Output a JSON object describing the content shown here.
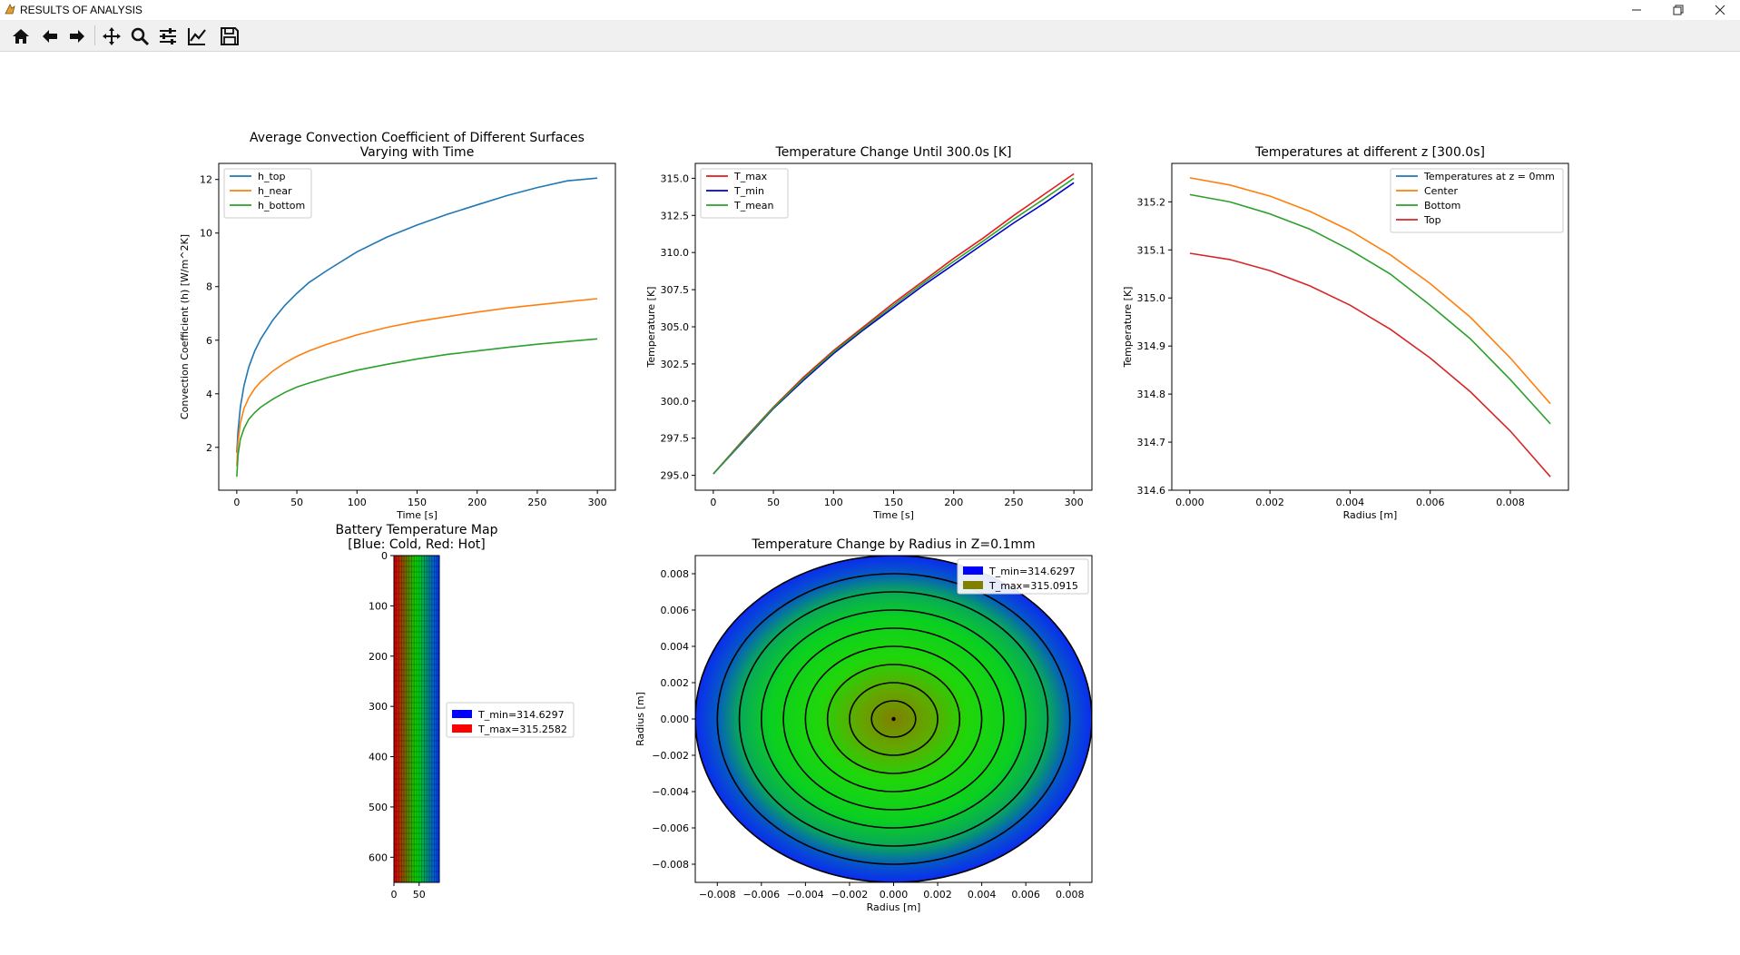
{
  "window": {
    "title": "RESULTS OF ANALYSIS",
    "controls": [
      "minimize",
      "restore",
      "close"
    ]
  },
  "toolbar": {
    "buttons": [
      {
        "icon": "home-icon",
        "name": "home"
      },
      {
        "icon": "back-arrow-icon",
        "name": "back"
      },
      {
        "icon": "forward-arrow-icon",
        "name": "forward"
      },
      {
        "icon": "pan-icon",
        "name": "pan"
      },
      {
        "icon": "zoom-icon",
        "name": "zoom"
      },
      {
        "icon": "configure-subplots-icon",
        "name": "subplots"
      },
      {
        "icon": "edit-axis-icon",
        "name": "customize"
      },
      {
        "icon": "save-icon",
        "name": "save"
      }
    ]
  },
  "chart_data": [
    {
      "type": "line",
      "title": "Average Convection Coefficient of Different Surfaces\nVarying with Time",
      "xlabel": "Time [s]",
      "ylabel": "Convection Coefficient (h) [W/m^2K]",
      "xlim": [
        -15,
        315
      ],
      "ylim": [
        0.4,
        12.6
      ],
      "xticks": [
        0,
        50,
        100,
        150,
        200,
        250,
        300
      ],
      "yticks": [
        2,
        4,
        6,
        8,
        10,
        12
      ],
      "legend": "top-left",
      "series": [
        {
          "name": "h_top",
          "color": "#1f77b4",
          "x": [
            0,
            1,
            3,
            6,
            10,
            15,
            20,
            30,
            40,
            50,
            60,
            75,
            100,
            125,
            150,
            175,
            200,
            225,
            250,
            275,
            300
          ],
          "y": [
            1.8,
            2.6,
            3.5,
            4.3,
            5.0,
            5.6,
            6.05,
            6.75,
            7.3,
            7.75,
            8.15,
            8.6,
            9.3,
            9.85,
            10.3,
            10.7,
            11.05,
            11.4,
            11.7,
            11.95,
            12.05
          ]
        },
        {
          "name": "h_near",
          "color": "#ff7f0e",
          "x": [
            0,
            1,
            3,
            6,
            10,
            15,
            20,
            30,
            40,
            50,
            60,
            75,
            100,
            125,
            150,
            175,
            200,
            225,
            250,
            275,
            300
          ],
          "y": [
            1.3,
            2.2,
            2.9,
            3.45,
            3.85,
            4.2,
            4.45,
            4.85,
            5.15,
            5.4,
            5.6,
            5.85,
            6.2,
            6.48,
            6.7,
            6.88,
            7.05,
            7.2,
            7.32,
            7.44,
            7.55
          ]
        },
        {
          "name": "h_bottom",
          "color": "#2ca02c",
          "x": [
            0,
            1,
            3,
            6,
            10,
            15,
            20,
            30,
            40,
            50,
            60,
            75,
            100,
            125,
            150,
            175,
            200,
            225,
            250,
            275,
            300
          ],
          "y": [
            0.9,
            1.7,
            2.3,
            2.7,
            3.05,
            3.3,
            3.5,
            3.8,
            4.05,
            4.25,
            4.4,
            4.6,
            4.88,
            5.1,
            5.3,
            5.47,
            5.6,
            5.73,
            5.85,
            5.95,
            6.05
          ]
        }
      ]
    },
    {
      "type": "line",
      "title": "Temperature Change Until 300.0s [K]",
      "xlabel": "Time [s]",
      "ylabel": "Temperature [K]",
      "xlim": [
        -15,
        315
      ],
      "ylim": [
        294.0,
        316.0
      ],
      "xticks": [
        0,
        50,
        100,
        150,
        200,
        250,
        300
      ],
      "yticks": [
        295.0,
        297.5,
        300.0,
        302.5,
        305.0,
        307.5,
        310.0,
        312.5,
        315.0
      ],
      "legend": "top-left",
      "series": [
        {
          "name": "T_max",
          "color": "#e41a1c",
          "x": [
            0,
            25,
            50,
            75,
            100,
            125,
            150,
            175,
            200,
            225,
            250,
            275,
            300
          ],
          "y": [
            295.1,
            297.4,
            299.6,
            301.6,
            303.4,
            305.0,
            306.6,
            308.1,
            309.6,
            311.0,
            312.5,
            313.9,
            315.3
          ]
        },
        {
          "name": "T_min",
          "color": "#0000cc",
          "x": [
            0,
            25,
            50,
            75,
            100,
            125,
            150,
            175,
            200,
            225,
            250,
            275,
            300
          ],
          "y": [
            295.1,
            297.3,
            299.5,
            301.4,
            303.2,
            304.8,
            306.3,
            307.8,
            309.2,
            310.6,
            312.0,
            313.3,
            314.7
          ]
        },
        {
          "name": "T_mean",
          "color": "#2ca02c",
          "x": [
            0,
            25,
            50,
            75,
            100,
            125,
            150,
            175,
            200,
            225,
            250,
            275,
            300
          ],
          "y": [
            295.1,
            297.35,
            299.55,
            301.5,
            303.3,
            304.9,
            306.45,
            307.95,
            309.4,
            310.8,
            312.25,
            313.6,
            315.0
          ]
        }
      ]
    },
    {
      "type": "line",
      "title": "Temperatures at different z [300.0s]",
      "xlabel": "Radius [m]",
      "ylabel": "Temperature [K]",
      "xlim": [
        -0.00045,
        0.00945
      ],
      "ylim": [
        314.6,
        315.28
      ],
      "xticks": [
        "0.000",
        "0.002",
        "0.004",
        "0.006",
        "0.008"
      ],
      "xtick_values": [
        0,
        0.002,
        0.004,
        0.006,
        0.008
      ],
      "yticks": [
        314.6,
        314.7,
        314.8,
        314.9,
        315.0,
        315.1,
        315.2
      ],
      "legend": "top-right",
      "series": [
        {
          "name": "Temperatures at z = 0mm",
          "color": "#1f77b4",
          "x": [],
          "y": []
        },
        {
          "name": "Center",
          "color": "#ff7f0e",
          "x": [
            0,
            0.001,
            0.002,
            0.003,
            0.004,
            0.005,
            0.006,
            0.007,
            0.008,
            0.009
          ],
          "y": [
            315.25,
            315.235,
            315.212,
            315.18,
            315.14,
            315.09,
            315.03,
            314.96,
            314.875,
            314.78
          ]
        },
        {
          "name": "Bottom",
          "color": "#2ca02c",
          "x": [
            0,
            0.001,
            0.002,
            0.003,
            0.004,
            0.005,
            0.006,
            0.007,
            0.008,
            0.009
          ],
          "y": [
            315.215,
            315.2,
            315.175,
            315.143,
            315.1,
            315.05,
            314.985,
            314.915,
            314.83,
            314.738
          ]
        },
        {
          "name": "Top",
          "color": "#d62728",
          "x": [
            0,
            0.001,
            0.002,
            0.003,
            0.004,
            0.005,
            0.006,
            0.007,
            0.008,
            0.009
          ],
          "y": [
            315.093,
            315.08,
            315.057,
            315.025,
            314.985,
            314.935,
            314.875,
            314.805,
            314.723,
            314.628
          ]
        }
      ]
    },
    {
      "type": "heatmap",
      "title": "Battery Temperature Map\n[Blue: Cold, Red: Hot]",
      "xlim": [
        0,
        90
      ],
      "ylim": [
        650,
        0
      ],
      "xticks": [
        0,
        50
      ],
      "yticks": [
        0,
        100,
        200,
        300,
        400,
        500,
        600
      ],
      "columns": 18,
      "rows": 60,
      "color_left": "#e00000",
      "color_mid": "#00dd00",
      "color_right": "#0040ff",
      "legend": "right",
      "legend_items": [
        {
          "label": "T_min=314.6297",
          "color": "#0000ff"
        },
        {
          "label": "T_max=315.2582",
          "color": "#ff0000"
        }
      ]
    },
    {
      "type": "heatmap",
      "title": "Temperature Change by Radius in Z=0.1mm",
      "xlabel": "Radius [m]",
      "ylabel": "Radius [m]",
      "xlim": [
        -0.009,
        0.009
      ],
      "ylim": [
        -0.009,
        0.009
      ],
      "xticks": [
        "−0.008",
        "−0.006",
        "−0.004",
        "−0.002",
        "0.000",
        "0.002",
        "0.004",
        "0.006",
        "0.008"
      ],
      "xtick_values": [
        -0.008,
        -0.006,
        -0.004,
        -0.002,
        0,
        0.002,
        0.004,
        0.006,
        0.008
      ],
      "yticks": [
        "0.008",
        "0.006",
        "0.004",
        "0.002",
        "0.000",
        "−0.002",
        "−0.004",
        "−0.006",
        "−0.008"
      ],
      "ytick_values": [
        0.008,
        0.006,
        0.004,
        0.002,
        0,
        -0.002,
        -0.004,
        -0.006,
        -0.008
      ],
      "rings": 9,
      "outer_radius": 0.009,
      "legend": "top-right",
      "legend_items": [
        {
          "label": "T_min=314.6297",
          "color": "#0000ff"
        },
        {
          "label": "T_max=315.0915",
          "color": "#7f8000"
        }
      ]
    }
  ]
}
